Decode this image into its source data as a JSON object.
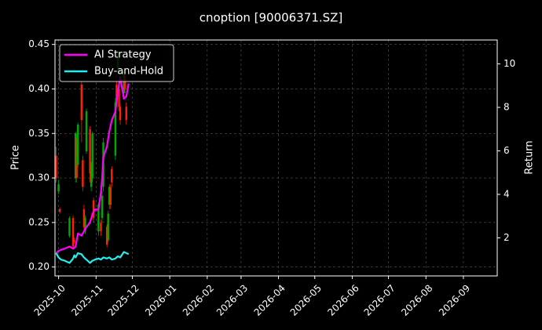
{
  "chart_data": {
    "type": "candlestick+line",
    "title": "cnoption [90006371.SZ]",
    "ylabel_left": "Price",
    "ylabel_right": "Return",
    "ylim_left": [
      0.19,
      0.455
    ],
    "ylim_right": [
      0.25,
      11.1
    ],
    "xlim": [
      "2025-09-28",
      "2026-09-29"
    ],
    "yticks_left": [
      "0.20",
      "0.25",
      "0.30",
      "0.35",
      "0.40",
      "0.45"
    ],
    "yticks_left_values": [
      0.2,
      0.25,
      0.3,
      0.35,
      0.4,
      0.45
    ],
    "yticks_right": [
      "2",
      "4",
      "6",
      "8",
      "10"
    ],
    "yticks_right_values": [
      2,
      4,
      6,
      8,
      10
    ],
    "xticks": [
      "2025-10",
      "2025-11",
      "2025-12",
      "2026-01",
      "2026-02",
      "2026-03",
      "2026-04",
      "2026-05",
      "2026-06",
      "2026-07",
      "2026-08",
      "2026-09"
    ],
    "xticks_dates": [
      "2025-10-01",
      "2025-11-01",
      "2025-12-01",
      "2026-01-01",
      "2026-02-01",
      "2026-03-01",
      "2026-04-01",
      "2026-05-01",
      "2026-06-01",
      "2026-07-01",
      "2026-08-01",
      "2026-09-01"
    ],
    "grid": true,
    "legend_position": "top-left",
    "colors": {
      "background": "#000000",
      "up": "#00aa00",
      "down": "#ff2200",
      "ai_strategy": "#ff00ff",
      "buy_and_hold": "#22eeee",
      "grid": "#555555"
    },
    "series": [
      {
        "name": "AI Strategy",
        "color": "#ff00ff",
        "axis": "right",
        "x": [
          "2025-09-29",
          "2025-10-01",
          "2025-10-03",
          "2025-10-06",
          "2025-10-08",
          "2025-10-10",
          "2025-10-13",
          "2025-10-15",
          "2025-10-16",
          "2025-10-17",
          "2025-10-20",
          "2025-10-22",
          "2025-10-24",
          "2025-10-27",
          "2025-10-29",
          "2025-10-31",
          "2025-11-03",
          "2025-11-05",
          "2025-11-06",
          "2025-11-07",
          "2025-11-10",
          "2025-11-12",
          "2025-11-14",
          "2025-11-17",
          "2025-11-19",
          "2025-11-21",
          "2025-11-24",
          "2025-11-26",
          "2025-11-28"
        ],
        "values": [
          1.3,
          1.4,
          1.45,
          1.5,
          1.55,
          1.6,
          1.5,
          1.6,
          1.9,
          2.2,
          2.1,
          2.3,
          2.5,
          2.7,
          3.1,
          3.3,
          3.3,
          4.1,
          4.7,
          5.7,
          6.2,
          6.9,
          7.4,
          7.8,
          8.7,
          9.4,
          8.4,
          8.5,
          9.1
        ]
      },
      {
        "name": "Buy-and-Hold",
        "color": "#22eeee",
        "axis": "right",
        "x": [
          "2025-09-29",
          "2025-10-01",
          "2025-10-03",
          "2025-10-06",
          "2025-10-08",
          "2025-10-10",
          "2025-10-13",
          "2025-10-14",
          "2025-10-15",
          "2025-10-17",
          "2025-10-20",
          "2025-10-22",
          "2025-10-24",
          "2025-10-27",
          "2025-10-29",
          "2025-10-31",
          "2025-11-03",
          "2025-11-05",
          "2025-11-07",
          "2025-11-10",
          "2025-11-12",
          "2025-11-14",
          "2025-11-17",
          "2025-11-19",
          "2025-11-21",
          "2025-11-24",
          "2025-11-26",
          "2025-11-28"
        ],
        "values": [
          1.3,
          1.1,
          1.0,
          0.95,
          0.9,
          0.85,
          1.05,
          1.2,
          1.1,
          1.3,
          1.25,
          1.1,
          1.0,
          0.85,
          0.95,
          1.0,
          1.05,
          1.0,
          1.1,
          1.05,
          1.1,
          1.0,
          1.05,
          1.15,
          1.1,
          1.35,
          1.3,
          1.25
        ]
      }
    ],
    "candles": [
      {
        "date": "2025-09-29",
        "open": 0.325,
        "close": 0.3,
        "high": 0.335,
        "low": 0.295
      },
      {
        "date": "2025-10-01",
        "open": 0.285,
        "close": 0.293,
        "high": 0.298,
        "low": 0.282
      },
      {
        "date": "2025-10-02",
        "open": 0.265,
        "close": 0.262,
        "high": 0.267,
        "low": 0.26
      },
      {
        "date": "2025-10-10",
        "open": 0.235,
        "close": 0.255,
        "high": 0.257,
        "low": 0.233
      },
      {
        "date": "2025-10-13",
        "open": 0.255,
        "close": 0.223,
        "high": 0.258,
        "low": 0.22
      },
      {
        "date": "2025-10-14",
        "open": 0.23,
        "close": 0.228,
        "high": 0.233,
        "low": 0.226
      },
      {
        "date": "2025-10-15",
        "open": 0.3,
        "close": 0.35,
        "high": 0.352,
        "low": 0.295
      },
      {
        "date": "2025-10-16",
        "open": 0.345,
        "close": 0.3,
        "high": 0.35,
        "low": 0.295
      },
      {
        "date": "2025-10-17",
        "open": 0.315,
        "close": 0.36,
        "high": 0.362,
        "low": 0.312
      },
      {
        "date": "2025-10-20",
        "open": 0.405,
        "close": 0.365,
        "high": 0.41,
        "low": 0.34
      },
      {
        "date": "2025-10-21",
        "open": 0.32,
        "close": 0.29,
        "high": 0.325,
        "low": 0.285
      },
      {
        "date": "2025-10-22",
        "open": 0.265,
        "close": 0.245,
        "high": 0.27,
        "low": 0.24
      },
      {
        "date": "2025-10-23",
        "open": 0.24,
        "close": 0.255,
        "high": 0.258,
        "low": 0.237
      },
      {
        "date": "2025-10-24",
        "open": 0.33,
        "close": 0.375,
        "high": 0.378,
        "low": 0.327
      },
      {
        "date": "2025-10-27",
        "open": 0.355,
        "close": 0.305,
        "high": 0.358,
        "low": 0.295
      },
      {
        "date": "2025-10-28",
        "open": 0.29,
        "close": 0.315,
        "high": 0.318,
        "low": 0.285
      },
      {
        "date": "2025-10-29",
        "open": 0.3,
        "close": 0.35,
        "high": 0.352,
        "low": 0.295
      },
      {
        "date": "2025-10-30",
        "open": 0.275,
        "close": 0.255,
        "high": 0.278,
        "low": 0.25
      },
      {
        "date": "2025-11-03",
        "open": 0.24,
        "close": 0.27,
        "high": 0.272,
        "low": 0.235
      },
      {
        "date": "2025-11-05",
        "open": 0.25,
        "close": 0.24,
        "high": 0.253,
        "low": 0.235
      },
      {
        "date": "2025-11-06",
        "open": 0.255,
        "close": 0.28,
        "high": 0.285,
        "low": 0.25
      },
      {
        "date": "2025-11-07",
        "open": 0.29,
        "close": 0.34,
        "high": 0.345,
        "low": 0.285
      },
      {
        "date": "2025-11-10",
        "open": 0.245,
        "close": 0.225,
        "high": 0.248,
        "low": 0.222
      },
      {
        "date": "2025-11-11",
        "open": 0.23,
        "close": 0.26,
        "high": 0.263,
        "low": 0.228
      },
      {
        "date": "2025-11-12",
        "open": 0.27,
        "close": 0.29,
        "high": 0.293,
        "low": 0.265
      },
      {
        "date": "2025-11-13",
        "open": 0.29,
        "close": 0.27,
        "high": 0.293,
        "low": 0.265
      },
      {
        "date": "2025-11-14",
        "open": 0.31,
        "close": 0.295,
        "high": 0.313,
        "low": 0.29
      },
      {
        "date": "2025-11-17",
        "open": 0.325,
        "close": 0.385,
        "high": 0.39,
        "low": 0.32
      },
      {
        "date": "2025-11-18",
        "open": 0.405,
        "close": 0.385,
        "high": 0.41,
        "low": 0.38
      },
      {
        "date": "2025-11-19",
        "open": 0.42,
        "close": 0.44,
        "high": 0.443,
        "low": 0.415
      },
      {
        "date": "2025-11-20",
        "open": 0.4,
        "close": 0.38,
        "high": 0.403,
        "low": 0.375
      },
      {
        "date": "2025-11-21",
        "open": 0.38,
        "close": 0.365,
        "high": 0.383,
        "low": 0.36
      },
      {
        "date": "2025-11-24",
        "open": 0.395,
        "close": 0.42,
        "high": 0.423,
        "low": 0.39
      },
      {
        "date": "2025-11-25",
        "open": 0.415,
        "close": 0.4,
        "high": 0.418,
        "low": 0.395
      },
      {
        "date": "2025-11-26",
        "open": 0.38,
        "close": 0.365,
        "high": 0.385,
        "low": 0.36
      }
    ]
  }
}
